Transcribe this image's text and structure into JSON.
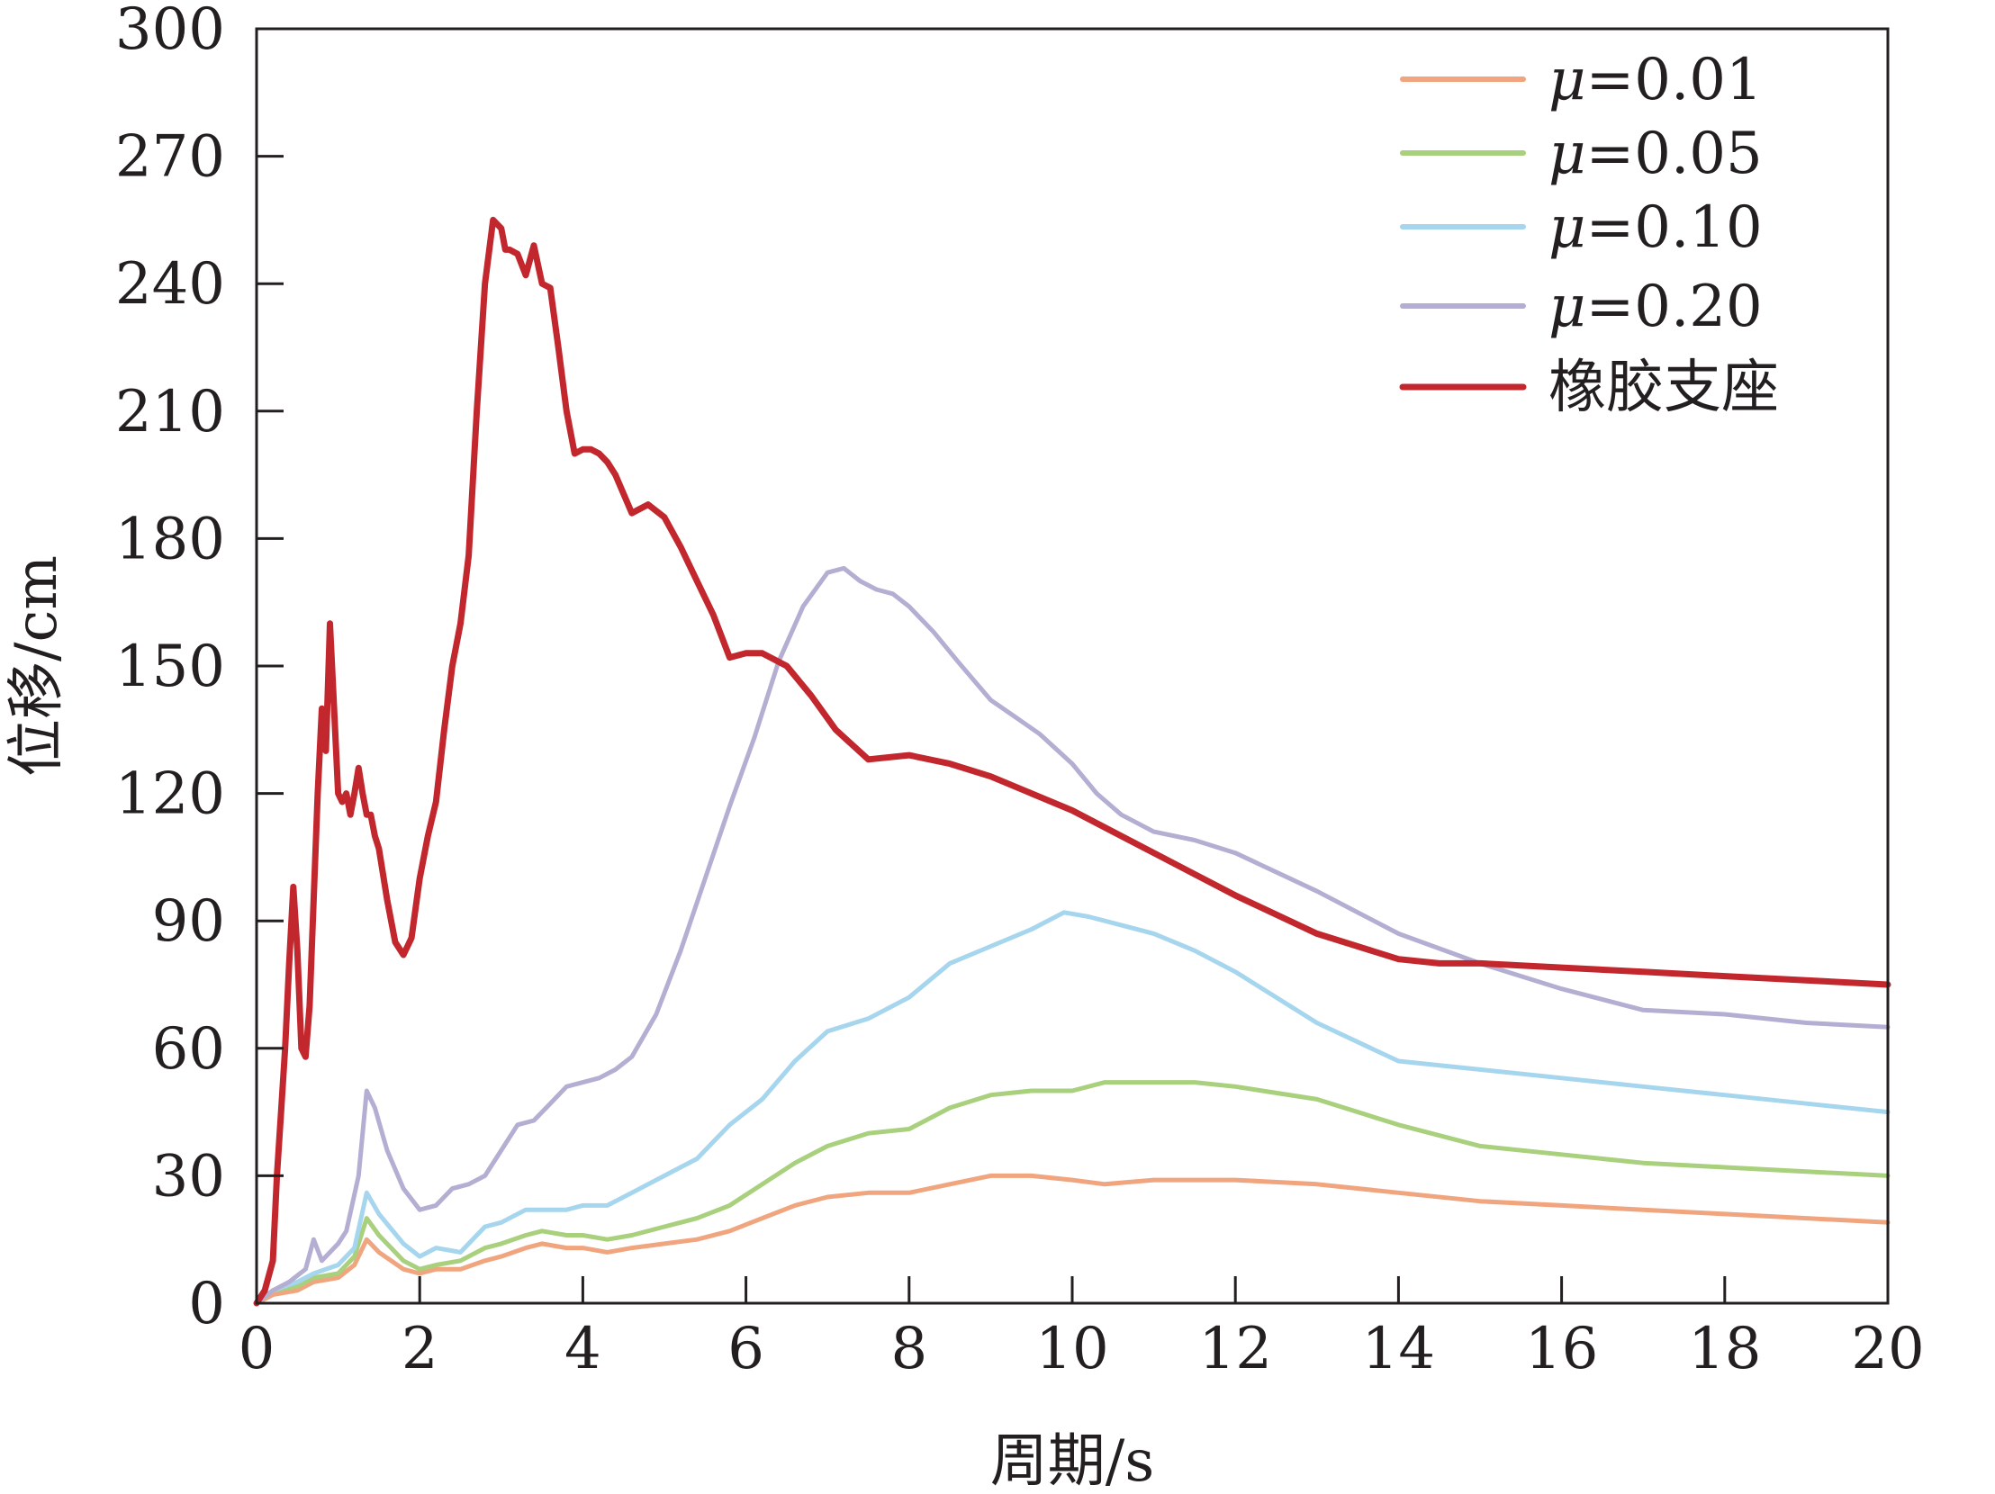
{
  "chart_data": {
    "type": "line",
    "title": "",
    "xlabel": "周期/s",
    "ylabel": "位移/cm",
    "xlim": [
      0,
      20
    ],
    "ylim": [
      0,
      300
    ],
    "xticks": [
      0,
      2,
      4,
      6,
      8,
      10,
      12,
      14,
      16,
      18,
      20
    ],
    "yticks": [
      0,
      30,
      60,
      90,
      120,
      150,
      180,
      210,
      240,
      270,
      300
    ],
    "grid": false,
    "legend_position": "top-right",
    "series": [
      {
        "name": "μ=0.01",
        "label_symbol": "μ",
        "label_value": "=0.01",
        "color": "#f0a57f",
        "x": [
          0,
          0.2,
          0.5,
          0.7,
          1.0,
          1.2,
          1.35,
          1.5,
          1.8,
          2.0,
          2.2,
          2.5,
          2.8,
          3.0,
          3.3,
          3.5,
          3.8,
          4.0,
          4.3,
          4.6,
          5.0,
          5.4,
          5.8,
          6.2,
          6.6,
          7.0,
          7.5,
          8.0,
          8.5,
          9.0,
          9.5,
          10.0,
          10.4,
          11.0,
          11.5,
          12.0,
          13.0,
          14.0,
          15.0,
          16.0,
          17.0,
          18.0,
          19.0,
          20.0
        ],
        "y": [
          0,
          2,
          3,
          5,
          6,
          9,
          15,
          12,
          8,
          7,
          8,
          8,
          10,
          11,
          13,
          14,
          13,
          13,
          12,
          13,
          14,
          15,
          17,
          20,
          23,
          25,
          26,
          26,
          28,
          30,
          30,
          29,
          28,
          29,
          29,
          29,
          28,
          26,
          24,
          23,
          22,
          21,
          20,
          19
        ]
      },
      {
        "name": "μ=0.05",
        "label_symbol": "μ",
        "label_value": "=0.05",
        "color": "#a9d07d",
        "x": [
          0,
          0.2,
          0.5,
          0.7,
          1.0,
          1.2,
          1.35,
          1.5,
          1.8,
          2.0,
          2.2,
          2.5,
          2.8,
          3.0,
          3.3,
          3.5,
          3.8,
          4.0,
          4.3,
          4.6,
          5.0,
          5.4,
          5.8,
          6.2,
          6.6,
          7.0,
          7.5,
          8.0,
          8.5,
          9.0,
          9.5,
          10.0,
          10.4,
          11.0,
          11.5,
          12.0,
          13.0,
          14.0,
          15.0,
          16.0,
          17.0,
          18.0,
          19.0,
          20.0
        ],
        "y": [
          0,
          3,
          4,
          6,
          7,
          11,
          20,
          16,
          10,
          8,
          9,
          10,
          13,
          14,
          16,
          17,
          16,
          16,
          15,
          16,
          18,
          20,
          23,
          28,
          33,
          37,
          40,
          41,
          46,
          49,
          50,
          50,
          52,
          52,
          52,
          51,
          48,
          42,
          37,
          35,
          33,
          32,
          31,
          30
        ]
      },
      {
        "name": "μ=0.10",
        "label_symbol": "μ",
        "label_value": "=0.10",
        "color": "#a6d5ee",
        "x": [
          0,
          0.2,
          0.5,
          0.7,
          1.0,
          1.2,
          1.35,
          1.5,
          1.8,
          2.0,
          2.2,
          2.5,
          2.8,
          3.0,
          3.3,
          3.5,
          3.8,
          4.0,
          4.3,
          4.6,
          5.0,
          5.4,
          5.8,
          6.2,
          6.6,
          7.0,
          7.5,
          8.0,
          8.5,
          9.0,
          9.5,
          9.9,
          10.2,
          10.6,
          11.0,
          11.5,
          12.0,
          13.0,
          14.0,
          15.0,
          16.0,
          17.0,
          18.0,
          19.0,
          20.0
        ],
        "y": [
          0,
          3,
          5,
          7,
          9,
          13,
          26,
          21,
          14,
          11,
          13,
          12,
          18,
          19,
          22,
          22,
          22,
          23,
          23,
          26,
          30,
          34,
          42,
          48,
          57,
          64,
          67,
          72,
          80,
          84,
          88,
          92,
          91,
          89,
          87,
          83,
          78,
          66,
          57,
          55,
          53,
          51,
          49,
          47,
          45
        ]
      },
      {
        "name": "μ=0.20",
        "label_symbol": "μ",
        "label_value": "=0.20",
        "color": "#b4aed2",
        "x": [
          0,
          0.2,
          0.4,
          0.6,
          0.7,
          0.8,
          1.0,
          1.1,
          1.25,
          1.35,
          1.45,
          1.6,
          1.8,
          2.0,
          2.2,
          2.4,
          2.6,
          2.8,
          3.0,
          3.2,
          3.4,
          3.6,
          3.8,
          4.0,
          4.2,
          4.4,
          4.6,
          4.9,
          5.2,
          5.5,
          5.8,
          6.1,
          6.4,
          6.7,
          7.0,
          7.2,
          7.4,
          7.6,
          7.8,
          8.0,
          8.3,
          8.6,
          9.0,
          9.3,
          9.6,
          10.0,
          10.3,
          10.6,
          11.0,
          11.5,
          12.0,
          13.0,
          14.0,
          15.0,
          16.0,
          17.0,
          18.0,
          19.0,
          20.0
        ],
        "y": [
          0,
          3,
          5,
          8,
          15,
          10,
          14,
          17,
          30,
          50,
          46,
          36,
          27,
          22,
          23,
          27,
          28,
          30,
          36,
          42,
          43,
          47,
          51,
          52,
          53,
          55,
          58,
          68,
          83,
          100,
          117,
          133,
          151,
          164,
          172,
          173,
          170,
          168,
          167,
          164,
          158,
          151,
          142,
          138,
          134,
          127,
          120,
          115,
          111,
          109,
          106,
          97,
          87,
          80,
          74,
          69,
          68,
          66,
          65
        ]
      },
      {
        "name": "橡胶支座",
        "label_symbol": "",
        "label_value": "橡胶支座",
        "color": "#c1272d",
        "x": [
          0,
          0.1,
          0.2,
          0.25,
          0.3,
          0.35,
          0.4,
          0.45,
          0.5,
          0.55,
          0.6,
          0.65,
          0.7,
          0.75,
          0.8,
          0.85,
          0.9,
          0.95,
          1.0,
          1.05,
          1.1,
          1.15,
          1.2,
          1.25,
          1.3,
          1.35,
          1.4,
          1.45,
          1.5,
          1.6,
          1.7,
          1.8,
          1.9,
          2.0,
          2.1,
          2.2,
          2.3,
          2.4,
          2.5,
          2.6,
          2.7,
          2.8,
          2.9,
          3.0,
          3.05,
          3.1,
          3.2,
          3.3,
          3.4,
          3.5,
          3.6,
          3.7,
          3.8,
          3.9,
          4.0,
          4.1,
          4.2,
          4.3,
          4.4,
          4.6,
          4.8,
          5.0,
          5.2,
          5.4,
          5.6,
          5.8,
          6.0,
          6.2,
          6.5,
          6.8,
          7.1,
          7.5,
          8.0,
          8.5,
          9.0,
          9.5,
          10.0,
          10.5,
          11.0,
          11.5,
          12.0,
          13.0,
          14.0,
          14.5,
          15.0,
          16.0,
          17.0,
          18.0,
          19.0,
          20.0
        ],
        "y": [
          0,
          3,
          10,
          30,
          45,
          60,
          80,
          98,
          83,
          60,
          58,
          70,
          95,
          120,
          140,
          130,
          160,
          140,
          120,
          118,
          120,
          115,
          120,
          126,
          120,
          115,
          115,
          110,
          107,
          95,
          85,
          82,
          86,
          100,
          110,
          118,
          135,
          150,
          160,
          176,
          210,
          240,
          255,
          253,
          248,
          248,
          247,
          242,
          249,
          240,
          239,
          225,
          210,
          200,
          201,
          201,
          200,
          198,
          195,
          186,
          188,
          185,
          178,
          170,
          162,
          152,
          153,
          153,
          150,
          143,
          135,
          128,
          129,
          127,
          124,
          120,
          116,
          111,
          106,
          101,
          96,
          87,
          81,
          80,
          80,
          79,
          78,
          77,
          76,
          75
        ]
      }
    ]
  }
}
